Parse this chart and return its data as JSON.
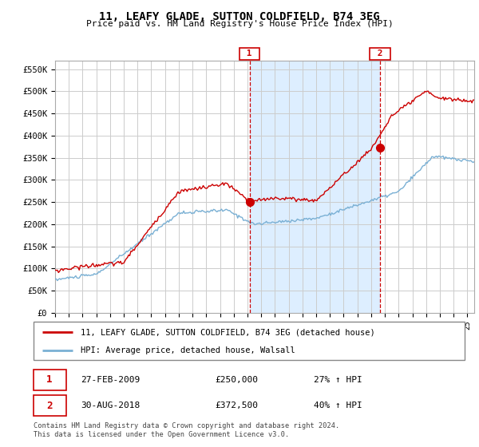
{
  "title": "11, LEAFY GLADE, SUTTON COLDFIELD, B74 3EG",
  "subtitle": "Price paid vs. HM Land Registry's House Price Index (HPI)",
  "ylabel_ticks": [
    "£0",
    "£50K",
    "£100K",
    "£150K",
    "£200K",
    "£250K",
    "£300K",
    "£350K",
    "£400K",
    "£450K",
    "£500K",
    "£550K"
  ],
  "ytick_values": [
    0,
    50000,
    100000,
    150000,
    200000,
    250000,
    300000,
    350000,
    400000,
    450000,
    500000,
    550000
  ],
  "ylim": [
    0,
    570000
  ],
  "legend_line1": "11, LEAFY GLADE, SUTTON COLDFIELD, B74 3EG (detached house)",
  "legend_line2": "HPI: Average price, detached house, Walsall",
  "annotation1_date": "27-FEB-2009",
  "annotation1_price": "£250,000",
  "annotation1_hpi": "27% ↑ HPI",
  "annotation2_date": "30-AUG-2018",
  "annotation2_price": "£372,500",
  "annotation2_hpi": "40% ↑ HPI",
  "footnote": "Contains HM Land Registry data © Crown copyright and database right 2024.\nThis data is licensed under the Open Government Licence v3.0.",
  "red_color": "#cc0000",
  "blue_color": "#7ab0d4",
  "shade_color": "#ddeeff",
  "background_color": "#ffffff",
  "grid_color": "#cccccc",
  "sale1_x": 2009.15,
  "sale1_y": 250000,
  "sale2_x": 2018.66,
  "sale2_y": 372500,
  "xmin": 1995.0,
  "xmax": 2025.5
}
